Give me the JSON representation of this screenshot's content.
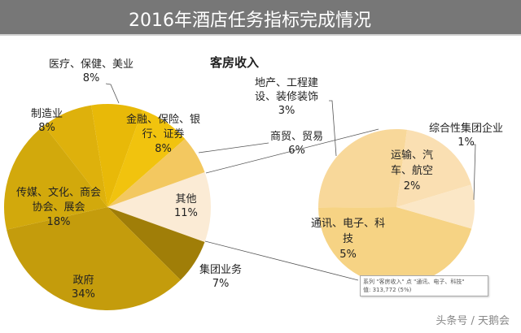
{
  "header": {
    "title": "2016年酒店任务指标完成情况"
  },
  "chart_data": {
    "type": "pie",
    "subtype": "pie-of-pie",
    "title": "客房收入",
    "series_name": "客房收入",
    "main": [
      {
        "label": "其他",
        "percent": 11,
        "color": "#FBEBD5"
      },
      {
        "label": "集团业务",
        "percent": 7,
        "color": "#A07E08"
      },
      {
        "label": "政府",
        "percent": 34,
        "color": "#C49C0C"
      },
      {
        "label": "传媒、文化、商会协会、展会",
        "percent": 18,
        "color": "#D2A90C"
      },
      {
        "label": "制造业",
        "percent": 8,
        "color": "#DEB10C"
      },
      {
        "label": "医疗、保健、美业",
        "percent": 8,
        "color": "#E8B908"
      },
      {
        "label": "金融、保险、银行、证券",
        "percent": 8,
        "color": "#F1C30E"
      },
      {
        "label": "商贸、贸易",
        "percent": 6,
        "color": "#F3C860"
      }
    ],
    "secondary": [
      {
        "label": "通讯、电子、科技",
        "percent": 5,
        "color": "#F6D384"
      },
      {
        "label": "地产、工程建设、装修装饰",
        "percent": 3,
        "color": "#F8D89A"
      },
      {
        "label": "运输、汽车、航空",
        "percent": 2,
        "color": "#FADFB2"
      },
      {
        "label": "综合性集团企业",
        "percent": 1,
        "color": "#FBE7C6"
      }
    ],
    "labels": {
      "qita": [
        "其他",
        "11%"
      ],
      "jituan": [
        "集团业务",
        "7%"
      ],
      "zhengfu": [
        "政府",
        "34%"
      ],
      "chuanmei": [
        "传媒、文化、商会",
        "协会、展会",
        "18%"
      ],
      "zhizao": [
        "制造业",
        "8%"
      ],
      "yiliao": [
        "医疗、保健、美业",
        "8%"
      ],
      "jinrong": [
        "金融、保险、银",
        "行、证券",
        "8%"
      ],
      "shangmao": [
        "商贸、贸易",
        "6%"
      ],
      "dichan": [
        "地产、工程建",
        "设、装修装饰",
        "3%"
      ],
      "yunshu": [
        "运输、汽",
        "车、航空",
        "2%"
      ],
      "zonghe": [
        "综合性集团企业",
        "1%"
      ],
      "tongxun": [
        "通讯、电子、科",
        "技",
        "5%"
      ]
    }
  },
  "tooltip": {
    "line1": "系列 \"客房收入\" 点 \"通讯、电子、科技\"",
    "line2": "值: 313,772 (5%)"
  },
  "watermark": "头条号 / 天鹅会"
}
